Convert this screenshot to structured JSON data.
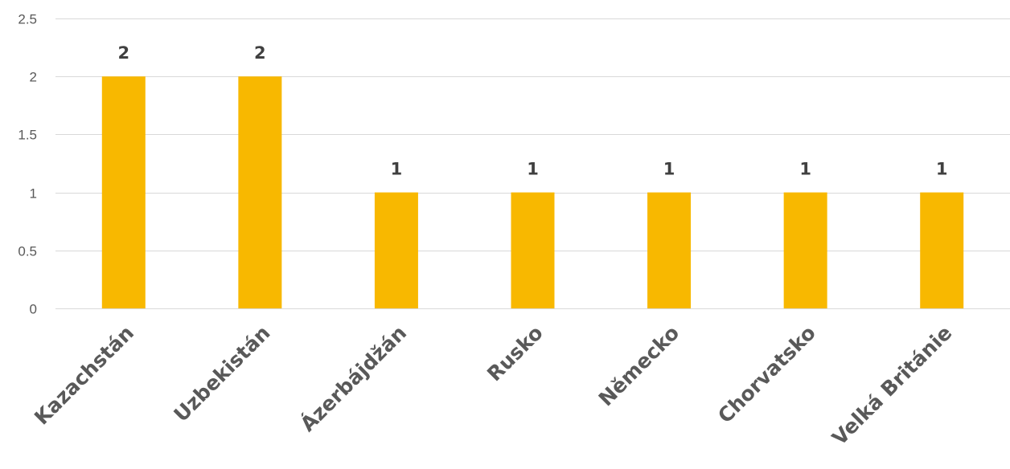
{
  "chart_data": {
    "type": "bar",
    "categories": [
      "Kazachstán",
      "Uzbekistán",
      "Ázerbájdžán",
      "Rusko",
      "Německo",
      "Chorvatsko",
      "Velká Británie"
    ],
    "values": [
      2,
      2,
      1,
      1,
      1,
      1,
      1
    ],
    "data_labels": [
      "2",
      "2",
      "1",
      "1",
      "1",
      "1",
      "1"
    ],
    "y_ticks": [
      "0",
      "0.5",
      "1",
      "1.5",
      "2",
      "2.5"
    ],
    "title": "",
    "xlabel": "",
    "ylabel": "",
    "ylim": [
      0,
      2.5
    ],
    "grid": true,
    "legend": "none",
    "bar_color": "#F8B800"
  }
}
